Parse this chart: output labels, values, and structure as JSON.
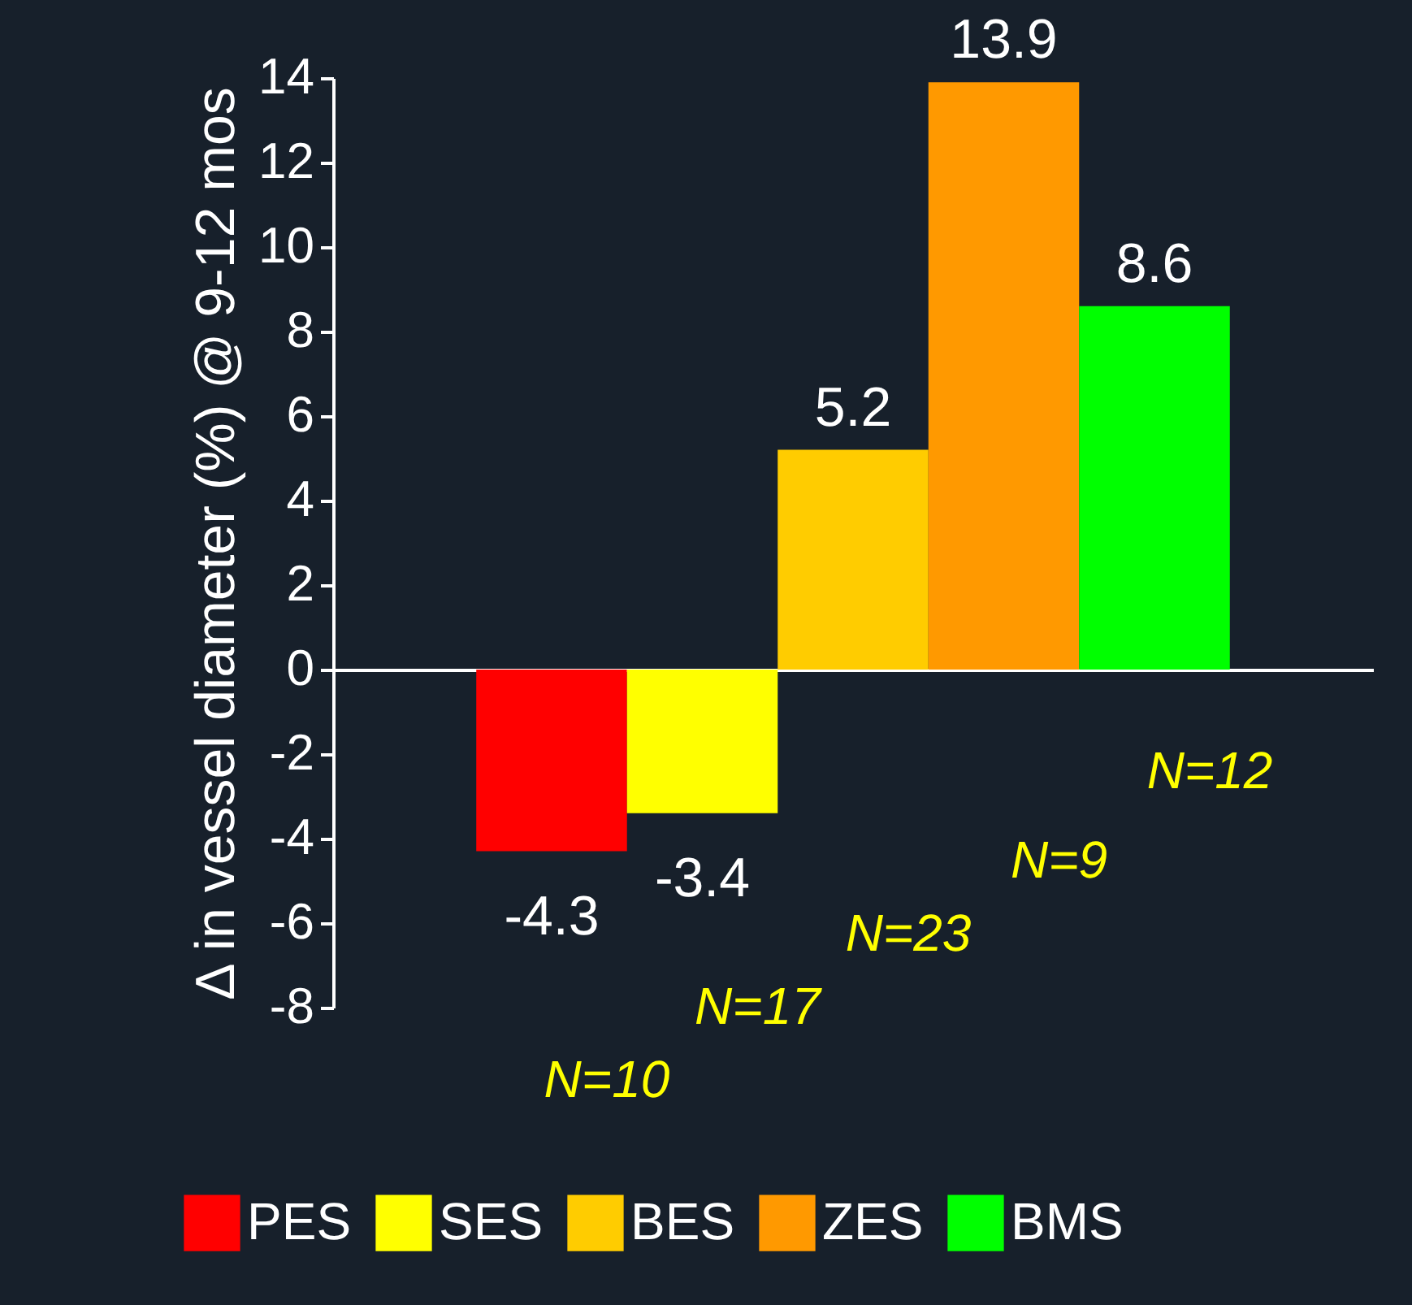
{
  "chart_data": {
    "type": "bar",
    "ylabel": "Δ in vessel diameter (%) @ 9-12 mos",
    "categories": [
      null
    ],
    "series": [
      {
        "name": "PES",
        "color": "#ff0000",
        "values": [
          -4.3
        ]
      },
      {
        "name": "SES",
        "color": "#ffff00",
        "values": [
          -3.4
        ]
      },
      {
        "name": "BES",
        "color": "#ffcc00",
        "values": [
          5.2
        ]
      },
      {
        "name": "ZES",
        "color": "#ff9900",
        "values": [
          13.9
        ]
      },
      {
        "name": "BMS",
        "color": "#00ff00",
        "values": [
          8.6
        ]
      }
    ],
    "ylim": [
      -8,
      14
    ],
    "yticks": [
      -8,
      -6,
      -4,
      -2,
      0,
      2,
      4,
      6,
      8,
      10,
      12,
      14
    ],
    "data_labels": true,
    "legend": "bottom",
    "tick_labels": "y",
    "annotations": [
      "N=10",
      "N=17",
      "N=23",
      "N=9",
      "N=12"
    ]
  }
}
